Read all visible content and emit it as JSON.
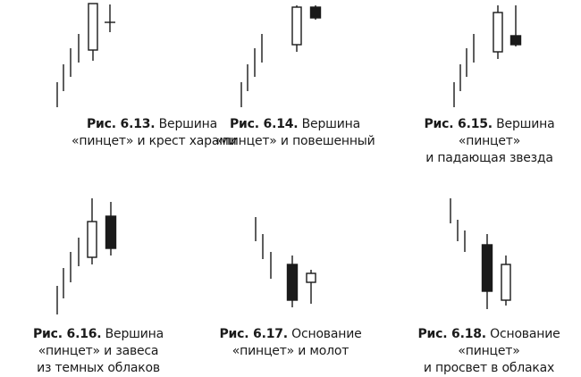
{
  "figures": [
    {
      "number": "Рис. 6.13.",
      "caption_lines": [
        " Вершина",
        "«пинцет» и крест харами"
      ],
      "pattern": "tweezers-top-harami-cross",
      "candles": [
        {
          "kind": "tick",
          "fill": "none"
        },
        {
          "kind": "tick",
          "fill": "none"
        },
        {
          "kind": "tick",
          "fill": "none"
        },
        {
          "kind": "tick",
          "fill": "none"
        },
        {
          "kind": "body",
          "fill": "white"
        },
        {
          "kind": "cross",
          "fill": "none"
        }
      ]
    },
    {
      "number": "Рис. 6.14.",
      "caption_lines": [
        " Вершина",
        "«пинцет» и повешенный"
      ],
      "pattern": "tweezers-top-hanging-man",
      "candles": [
        {
          "kind": "tick",
          "fill": "none"
        },
        {
          "kind": "tick",
          "fill": "none"
        },
        {
          "kind": "tick",
          "fill": "none"
        },
        {
          "kind": "tick",
          "fill": "none"
        },
        {
          "kind": "body",
          "fill": "white"
        },
        {
          "kind": "body",
          "fill": "black"
        }
      ]
    },
    {
      "number": "Рис. 6.15.",
      "caption_lines": [
        " Вершина",
        "«пинцет»",
        "и падающая звезда"
      ],
      "pattern": "tweezers-top-shooting-star",
      "candles": [
        {
          "kind": "tick",
          "fill": "none"
        },
        {
          "kind": "tick",
          "fill": "none"
        },
        {
          "kind": "tick",
          "fill": "none"
        },
        {
          "kind": "tick",
          "fill": "none"
        },
        {
          "kind": "body",
          "fill": "white"
        },
        {
          "kind": "body",
          "fill": "black"
        }
      ]
    },
    {
      "number": "Рис. 6.16.",
      "caption_lines": [
        " Вершина",
        "«пинцет» и завеса",
        "из темных облаков"
      ],
      "pattern": "tweezers-top-dark-cloud-cover",
      "candles": [
        {
          "kind": "tick",
          "fill": "none"
        },
        {
          "kind": "tick",
          "fill": "none"
        },
        {
          "kind": "tick",
          "fill": "none"
        },
        {
          "kind": "tick",
          "fill": "none"
        },
        {
          "kind": "body",
          "fill": "white"
        },
        {
          "kind": "body",
          "fill": "black"
        }
      ]
    },
    {
      "number": "Рис. 6.17.",
      "caption_lines": [
        " Основание",
        "«пинцет» и молот"
      ],
      "pattern": "tweezers-bottom-hammer",
      "candles": [
        {
          "kind": "tick",
          "fill": "none"
        },
        {
          "kind": "tick",
          "fill": "none"
        },
        {
          "kind": "tick",
          "fill": "none"
        },
        {
          "kind": "body",
          "fill": "black"
        },
        {
          "kind": "body",
          "fill": "white"
        }
      ]
    },
    {
      "number": "Рис. 6.18.",
      "caption_lines": [
        " Основание",
        "«пинцет»",
        "и просвет в облаках"
      ],
      "pattern": "tweezers-bottom-piercing",
      "candles": [
        {
          "kind": "tick",
          "fill": "none"
        },
        {
          "kind": "tick",
          "fill": "none"
        },
        {
          "kind": "tick",
          "fill": "none"
        },
        {
          "kind": "body",
          "fill": "black"
        },
        {
          "kind": "body",
          "fill": "white"
        }
      ]
    }
  ],
  "colors": {
    "ink": "#1a1a1a",
    "paper": "#ffffff"
  }
}
